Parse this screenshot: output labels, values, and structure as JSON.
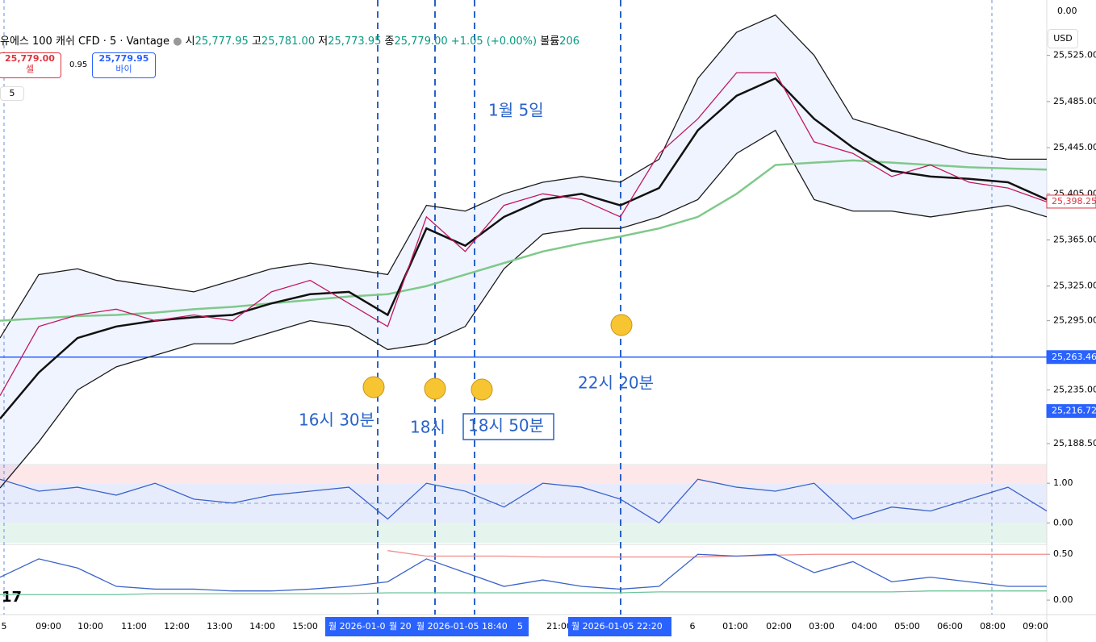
{
  "header": {
    "symbol": "유에스 100 캐쉬 CFD · 5 · Vantage",
    "open_label": "시",
    "open": "25,777.95",
    "high_label": "고",
    "high": "25,781.00",
    "low_label": "저",
    "low": "25,773.95",
    "close_label": "종",
    "close": "25,779.00",
    "change": "+1.05 (+0.00%)",
    "volume_label": "볼륨",
    "volume": "206"
  },
  "trade": {
    "sell_price": "25,779.00",
    "sell_label": "셀",
    "spread": "0.95",
    "buy_price": "25,779.95",
    "buy_label": "바이",
    "interval": "5",
    "currency": "USD"
  },
  "annotations": [
    "1월 5일",
    "16시 30분",
    "18시",
    "18시 50분",
    "22시 20분"
  ],
  "x_axis_labels": [
    "5",
    "09:00",
    "10:00",
    "11:00",
    "12:00",
    "13:00",
    "14:00",
    "15:00",
    "21:00",
    "6",
    "01:00",
    "02:00",
    "03:00",
    "04:00",
    "05:00",
    "06:00",
    "08:00",
    "09:00"
  ],
  "cursor_labels": [
    "월 2026-01-0",
    "월 20",
    "월 2026-01-05   18:40",
    "5",
    "월 2026-01-05   22:20"
  ],
  "top_axis_label": "0.00",
  "chart_data": [
    {
      "type": "line",
      "ylim": [
        25171,
        25573
      ],
      "yticks": [
        {
          "value": 25525,
          "label": "25,525.00"
        },
        {
          "value": 25485,
          "label": "25,485.00"
        },
        {
          "value": 25445,
          "label": "25,445.00"
        },
        {
          "value": 25405,
          "label": "25,405.00"
        },
        {
          "value": 25365,
          "label": "25,365.00"
        },
        {
          "value": 25325,
          "label": "25,325.00"
        },
        {
          "value": 25295,
          "label": "25,295.00"
        },
        {
          "value": 25235,
          "label": "25,235.00"
        },
        {
          "value": 25188.5,
          "label": "25,188.50"
        }
      ],
      "price_labels": [
        {
          "value": 25398.25,
          "label": "25,398.25",
          "color": "#e0333d"
        },
        {
          "value": 25263.46,
          "label": "25,263.46",
          "color": "#2962ff"
        },
        {
          "value": 25216.72,
          "label": "25,216.72",
          "color": "#2962ff"
        }
      ],
      "hline": 25263.46,
      "series": [
        {
          "name": "upper",
          "color": "#1c1c1c",
          "values": [
            25280,
            25335,
            25340,
            25330,
            25325,
            25320,
            25330,
            25340,
            25345,
            25340,
            25335,
            25395,
            25390,
            25405,
            25415,
            25420,
            25415,
            25435,
            25505,
            25545,
            25560,
            25525,
            25470,
            25460,
            25450,
            25440,
            25435,
            25435
          ]
        },
        {
          "name": "lower",
          "color": "#1c1c1c",
          "values": [
            25150,
            25190,
            25235,
            25255,
            25265,
            25275,
            25275,
            25285,
            25295,
            25290,
            25270,
            25275,
            25290,
            25340,
            25370,
            25375,
            25375,
            25385,
            25400,
            25440,
            25460,
            25400,
            25390,
            25390,
            25385,
            25390,
            25395,
            25385
          ]
        },
        {
          "name": "ma200",
          "color": "#7fc98a",
          "values": [
            25295,
            25297,
            25299,
            25300,
            25302,
            25305,
            25307,
            25310,
            25313,
            25316,
            25318,
            25325,
            25335,
            25345,
            25355,
            25362,
            25368,
            25375,
            25385,
            25405,
            25430,
            25432,
            25434,
            25432,
            25430,
            25428,
            25427,
            25426
          ]
        },
        {
          "name": "basis",
          "color": "#111111",
          "values": [
            25210,
            25250,
            25280,
            25290,
            25295,
            25298,
            25300,
            25310,
            25318,
            25320,
            25300,
            25375,
            25360,
            25385,
            25400,
            25405,
            25395,
            25410,
            25460,
            25490,
            25505,
            25470,
            25445,
            25425,
            25420,
            25418,
            25415,
            25400
          ]
        },
        {
          "name": "price",
          "color": "#c2185b",
          "values": [
            25230,
            25290,
            25300,
            25305,
            25295,
            25300,
            25295,
            25320,
            25330,
            25310,
            25290,
            25385,
            25355,
            25395,
            25405,
            25400,
            25385,
            25440,
            25470,
            25510,
            25510,
            25450,
            25440,
            25420,
            25430,
            25415,
            25410,
            25398
          ]
        }
      ]
    },
    {
      "type": "line",
      "ylim": [
        -0.5,
        1.45
      ],
      "yticks": [
        {
          "value": 1,
          "label": "1.00"
        },
        {
          "value": 0,
          "label": "0.00"
        }
      ],
      "series": [
        {
          "name": "osc",
          "color": "#3a62c9",
          "values": [
            1.1,
            0.8,
            0.9,
            0.7,
            1.0,
            0.6,
            0.5,
            0.7,
            0.8,
            0.9,
            0.1,
            1.0,
            0.8,
            0.4,
            1.0,
            0.9,
            0.6,
            0.0,
            1.1,
            0.9,
            0.8,
            1.0,
            0.1,
            0.4,
            0.3,
            0.6,
            0.9,
            0.3
          ]
        }
      ]
    },
    {
      "type": "line",
      "ylim": [
        -0.14,
        0.59
      ],
      "yticks": [
        {
          "value": 0.5,
          "label": "0.50"
        },
        {
          "value": 0,
          "label": "0.00"
        }
      ],
      "series": [
        {
          "name": "signal",
          "color": "#f08c8c",
          "values": [
            null,
            null,
            null,
            null,
            null,
            null,
            null,
            null,
            null,
            null,
            0.54,
            0.48,
            0.48,
            0.48,
            0.47,
            0.47,
            0.47,
            0.47,
            0.47,
            0.48,
            0.49,
            0.5,
            0.5,
            0.5,
            0.5,
            0.5,
            0.5,
            0.5
          ]
        },
        {
          "name": "base",
          "color": "#6cc59a",
          "values": [
            0.06,
            0.06,
            0.06,
            0.06,
            0.07,
            0.07,
            0.07,
            0.07,
            0.07,
            0.07,
            0.08,
            0.08,
            0.08,
            0.08,
            0.08,
            0.08,
            0.08,
            0.09,
            0.09,
            0.09,
            0.09,
            0.09,
            0.09,
            0.09,
            0.1,
            0.1,
            0.1,
            0.1
          ]
        },
        {
          "name": "adx",
          "color": "#3a62c9",
          "values": [
            0.25,
            0.45,
            0.35,
            0.15,
            0.12,
            0.12,
            0.1,
            0.1,
            0.12,
            0.15,
            0.2,
            0.45,
            0.3,
            0.15,
            0.22,
            0.15,
            0.12,
            0.15,
            0.5,
            0.48,
            0.5,
            0.3,
            0.42,
            0.2,
            0.25,
            0.2,
            0.15,
            0.15
          ]
        }
      ]
    }
  ]
}
